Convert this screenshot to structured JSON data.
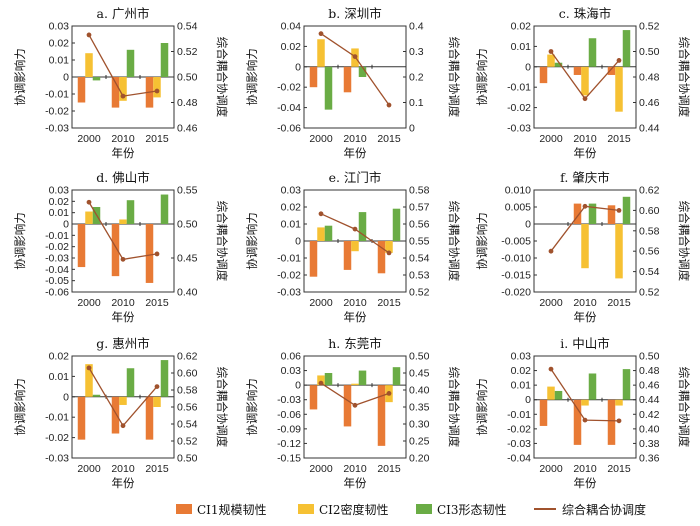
{
  "chart_data": [
    {
      "title": "a. 广州市",
      "type": "bar+line",
      "categories": [
        "2000",
        "2010",
        "2015"
      ],
      "xlabel": "年份",
      "ylabel": "协调影响力",
      "y2label": "综合耦合协调度",
      "ylim": [
        -0.03,
        0.03
      ],
      "yticks": [
        "-0.03",
        "-0.02",
        "-0.01",
        "0",
        "0.01",
        "0.02",
        "0.03"
      ],
      "y2lim": [
        0.46,
        0.54
      ],
      "y2ticks": [
        "0.46",
        "0.48",
        "0.50",
        "0.52",
        "0.54"
      ],
      "series": [
        {
          "name": "CI1规模韧性",
          "values": [
            -0.015,
            -0.018,
            -0.018
          ]
        },
        {
          "name": "CI2密度韧性",
          "values": [
            0.014,
            -0.014,
            -0.012
          ]
        },
        {
          "name": "CI3形态韧性",
          "values": [
            -0.002,
            0.016,
            0.02
          ]
        }
      ],
      "line": {
        "name": "综合耦合协调度",
        "values": [
          0.533,
          0.485,
          0.489
        ]
      }
    },
    {
      "title": "b. 深圳市",
      "type": "bar+line",
      "categories": [
        "2000",
        "2010",
        "2015"
      ],
      "xlabel": "年份",
      "ylabel": "协调影响力",
      "y2label": "综合耦合协调度",
      "ylim": [
        -0.06,
        0.04
      ],
      "yticks": [
        "-0.06",
        "-0.04",
        "-0.02",
        "0",
        "0.02",
        "0.04"
      ],
      "y2lim": [
        0,
        0.4
      ],
      "y2ticks": [
        "0",
        "0.1",
        "0.2",
        "0.3",
        "0.4"
      ],
      "series": [
        {
          "name": "CI1规模韧性",
          "values": [
            -0.02,
            -0.025,
            0
          ]
        },
        {
          "name": "CI2密度韧性",
          "values": [
            0.027,
            0.018,
            0
          ]
        },
        {
          "name": "CI3形态韧性",
          "values": [
            -0.042,
            -0.01,
            0
          ]
        }
      ],
      "line": {
        "name": "综合耦合协调度",
        "values": [
          0.37,
          0.28,
          0.09
        ]
      }
    },
    {
      "title": "c. 珠海市",
      "type": "bar+line",
      "categories": [
        "2000",
        "2010",
        "2015"
      ],
      "xlabel": "年份",
      "ylabel": "协调影响力",
      "y2label": "综合耦合协调度",
      "ylim": [
        -0.03,
        0.02
      ],
      "yticks": [
        "-0.03",
        "-0.02",
        "-0.01",
        "0",
        "0.01",
        "0.02"
      ],
      "y2lim": [
        0.44,
        0.52
      ],
      "y2ticks": [
        "0.44",
        "0.46",
        "0.48",
        "0.50",
        "0.52"
      ],
      "series": [
        {
          "name": "CI1规模韧性",
          "values": [
            -0.008,
            -0.004,
            -0.004
          ]
        },
        {
          "name": "CI2密度韧性",
          "values": [
            0.006,
            -0.014,
            -0.022
          ]
        },
        {
          "name": "CI3形态韧性",
          "values": [
            0.002,
            0.014,
            0.018
          ]
        }
      ],
      "line": {
        "name": "综合耦合协调度",
        "values": [
          0.5,
          0.463,
          0.493
        ]
      }
    },
    {
      "title": "d. 佛山市",
      "type": "bar+line",
      "categories": [
        "2000",
        "2010",
        "2015"
      ],
      "xlabel": "年份",
      "ylabel": "协调影响力",
      "y2label": "综合耦合协调度",
      "ylim": [
        -0.06,
        0.03
      ],
      "yticks": [
        "-0.06",
        "-0.05",
        "-0.04",
        "-0.03",
        "-0.02",
        "-0.01",
        "0",
        "0.01",
        "0.02",
        "0.03"
      ],
      "y2lim": [
        0.4,
        0.55
      ],
      "y2ticks": [
        "0.40",
        "0.45",
        "0.50",
        "0.55"
      ],
      "series": [
        {
          "name": "CI1规模韧性",
          "values": [
            -0.038,
            -0.046,
            -0.052
          ]
        },
        {
          "name": "CI2密度韧性",
          "values": [
            0.011,
            0.004,
            0
          ]
        },
        {
          "name": "CI3形态韧性",
          "values": [
            0.015,
            0.021,
            0.026
          ]
        }
      ],
      "line": {
        "name": "综合耦合协调度",
        "values": [
          0.532,
          0.448,
          0.456
        ]
      }
    },
    {
      "title": "e. 江门市",
      "type": "bar+line",
      "categories": [
        "2000",
        "2010",
        "2015"
      ],
      "xlabel": "年份",
      "ylabel": "协调影响力",
      "y2label": "综合耦合协调度",
      "ylim": [
        -0.03,
        0.03
      ],
      "yticks": [
        "-0.03",
        "-0.02",
        "-0.01",
        "0",
        "0.01",
        "0.02",
        "0.03"
      ],
      "y2lim": [
        0.52,
        0.58
      ],
      "y2ticks": [
        "0.52",
        "0.53",
        "0.54",
        "0.55",
        "0.56",
        "0.57",
        "0.58"
      ],
      "series": [
        {
          "name": "CI1规模韧性",
          "values": [
            -0.021,
            -0.017,
            -0.019
          ]
        },
        {
          "name": "CI2密度韧性",
          "values": [
            0.008,
            -0.006,
            -0.007
          ]
        },
        {
          "name": "CI3形态韧性",
          "values": [
            0.009,
            0.017,
            0.019
          ]
        }
      ],
      "line": {
        "name": "综合耦合协调度",
        "values": [
          0.566,
          0.557,
          0.543
        ]
      }
    },
    {
      "title": "f. 肇庆市",
      "type": "bar+line",
      "categories": [
        "2000",
        "2010",
        "2015"
      ],
      "xlabel": "年份",
      "ylabel": "协调影响力",
      "y2label": "综合耦合协调度",
      "ylim": [
        -0.02,
        0.01
      ],
      "yticks": [
        "-0.020",
        "-0.015",
        "-0.010",
        "-0.005",
        "0",
        "0.005",
        "0.010"
      ],
      "y2lim": [
        0.52,
        0.62
      ],
      "y2ticks": [
        "0.52",
        "0.54",
        "0.56",
        "0.58",
        "0.60",
        "0.62"
      ],
      "series": [
        {
          "name": "CI1规模韧性",
          "values": [
            0,
            0.006,
            0.0055
          ]
        },
        {
          "name": "CI2密度韧性",
          "values": [
            0,
            -0.013,
            -0.016
          ]
        },
        {
          "name": "CI3形态韧性",
          "values": [
            0,
            0.006,
            0.008
          ]
        }
      ],
      "line": {
        "name": "综合耦合协调度",
        "values": [
          0.56,
          0.604,
          0.6
        ]
      }
    },
    {
      "title": "g. 惠州市",
      "type": "bar+line",
      "categories": [
        "2000",
        "2010",
        "2015"
      ],
      "xlabel": "年份",
      "ylabel": "协调影响力",
      "y2label": "综合耦合协调度",
      "ylim": [
        -0.03,
        0.02
      ],
      "yticks": [
        "-0.03",
        "-0.02",
        "-0.01",
        "0",
        "0.01",
        "0.02"
      ],
      "y2lim": [
        0.5,
        0.62
      ],
      "y2ticks": [
        "0.50",
        "0.52",
        "0.54",
        "0.56",
        "0.58",
        "0.60",
        "0.62"
      ],
      "series": [
        {
          "name": "CI1规模韧性",
          "values": [
            -0.021,
            -0.018,
            -0.021
          ]
        },
        {
          "name": "CI2密度韧性",
          "values": [
            0.016,
            -0.004,
            -0.005
          ]
        },
        {
          "name": "CI3形态韧性",
          "values": [
            0.001,
            0.014,
            0.018
          ]
        }
      ],
      "line": {
        "name": "综合耦合协调度",
        "values": [
          0.606,
          0.538,
          0.584
        ]
      }
    },
    {
      "title": "h. 东莞市",
      "type": "bar+line",
      "categories": [
        "2000",
        "2010",
        "2015"
      ],
      "xlabel": "年份",
      "ylabel": "协调影响力",
      "y2label": "综合耦合协调度",
      "ylim": [
        -0.15,
        0.06
      ],
      "yticks": [
        "-0.15",
        "-0.12",
        "-0.09",
        "-0.06",
        "-0.03",
        "0",
        "0.03",
        "0.06"
      ],
      "y2lim": [
        0.2,
        0.5
      ],
      "y2ticks": [
        "0.20",
        "0.25",
        "0.30",
        "0.35",
        "0.40",
        "0.45",
        "0.50"
      ],
      "series": [
        {
          "name": "CI1规模韧性",
          "values": [
            -0.05,
            -0.085,
            -0.125
          ]
        },
        {
          "name": "CI2密度韧性",
          "values": [
            0.02,
            0.003,
            -0.035
          ]
        },
        {
          "name": "CI3形态韧性",
          "values": [
            0.025,
            0.03,
            0.037
          ]
        }
      ],
      "line": {
        "name": "综合耦合协调度",
        "values": [
          0.42,
          0.355,
          0.39
        ]
      }
    },
    {
      "title": "i. 中山市",
      "type": "bar+line",
      "categories": [
        "2000",
        "2010",
        "2015"
      ],
      "xlabel": "年份",
      "ylabel": "协调影响力",
      "y2label": "综合耦合协调度",
      "ylim": [
        -0.04,
        0.03
      ],
      "yticks": [
        "-0.04",
        "-0.03",
        "-0.02",
        "-0.01",
        "0",
        "0.01",
        "0.02",
        "0.03"
      ],
      "y2lim": [
        0.36,
        0.5
      ],
      "y2ticks": [
        "0.36",
        "0.38",
        "0.40",
        "0.42",
        "0.44",
        "0.46",
        "0.48",
        "0.50"
      ],
      "series": [
        {
          "name": "CI1规模韧性",
          "values": [
            -0.018,
            -0.031,
            -0.031
          ]
        },
        {
          "name": "CI2密度韧性",
          "values": [
            0.009,
            -0.004,
            -0.004
          ]
        },
        {
          "name": "CI3形态韧性",
          "values": [
            0.006,
            0.018,
            0.021
          ]
        }
      ],
      "line": {
        "name": "综合耦合协调度",
        "values": [
          0.482,
          0.412,
          0.411
        ]
      }
    }
  ],
  "legend": {
    "ci1": "CI1规模韧性",
    "ci2": "CI2密度韧性",
    "ci3": "CI3形态韧性",
    "line": "综合耦合协调度"
  },
  "colors": {
    "ci1": "#e87a35",
    "ci2": "#f6c133",
    "ci3": "#6aac45",
    "line": "#a0522d"
  }
}
